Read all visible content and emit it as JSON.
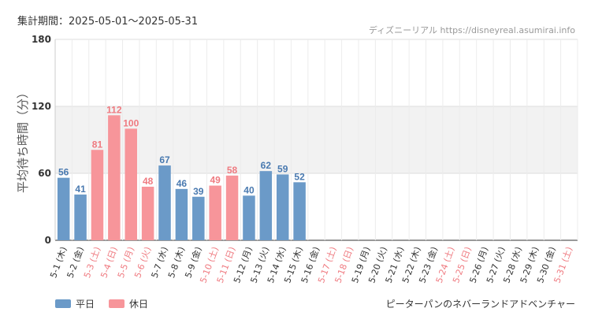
{
  "header": {
    "period": "集計期間：2025-05-01〜2025-05-31",
    "source": "ディズニーリアル https://disneyreal.asumirai.info"
  },
  "legend": {
    "weekday_label": "平日",
    "holiday_label": "休日"
  },
  "attraction": "ピーターパンのネバーランドアドベンチャー",
  "colors": {
    "weekday": "#6b9ac8",
    "holiday": "#f7959a",
    "weekday_text": "#4a7ab0",
    "holiday_text": "#ef7a80",
    "band": "#f2f2f2"
  },
  "chart_data": {
    "type": "bar",
    "ylabel": "平均待ち時間（分）",
    "ylim": [
      0,
      180
    ],
    "yticks": [
      0,
      60,
      120,
      180
    ],
    "band": [
      60,
      120
    ],
    "categories": [
      "5-1 (木)",
      "5-2 (金)",
      "5-3 (土)",
      "5-4 (日)",
      "5-5 (月)",
      "5-6 (火)",
      "5-7 (水)",
      "5-8 (木)",
      "5-9 (金)",
      "5-10 (土)",
      "5-11 (日)",
      "5-12 (月)",
      "5-13 (火)",
      "5-14 (水)",
      "5-15 (木)",
      "5-16 (金)",
      "5-17 (土)",
      "5-18 (日)",
      "5-19 (月)",
      "5-20 (火)",
      "5-21 (水)",
      "5-22 (木)",
      "5-23 (金)",
      "5-24 (土)",
      "5-25 (日)",
      "5-26 (月)",
      "5-27 (火)",
      "5-28 (水)",
      "5-29 (木)",
      "5-30 (金)",
      "5-31 (土)"
    ],
    "values": [
      56,
      41,
      81,
      112,
      100,
      48,
      67,
      46,
      39,
      49,
      58,
      40,
      62,
      59,
      52,
      null,
      null,
      null,
      null,
      null,
      null,
      null,
      null,
      null,
      null,
      null,
      null,
      null,
      null,
      null,
      null
    ],
    "holiday": [
      false,
      false,
      true,
      true,
      true,
      true,
      false,
      false,
      false,
      true,
      true,
      false,
      false,
      false,
      false,
      false,
      true,
      true,
      false,
      false,
      false,
      false,
      false,
      true,
      true,
      false,
      false,
      false,
      false,
      false,
      true
    ]
  }
}
